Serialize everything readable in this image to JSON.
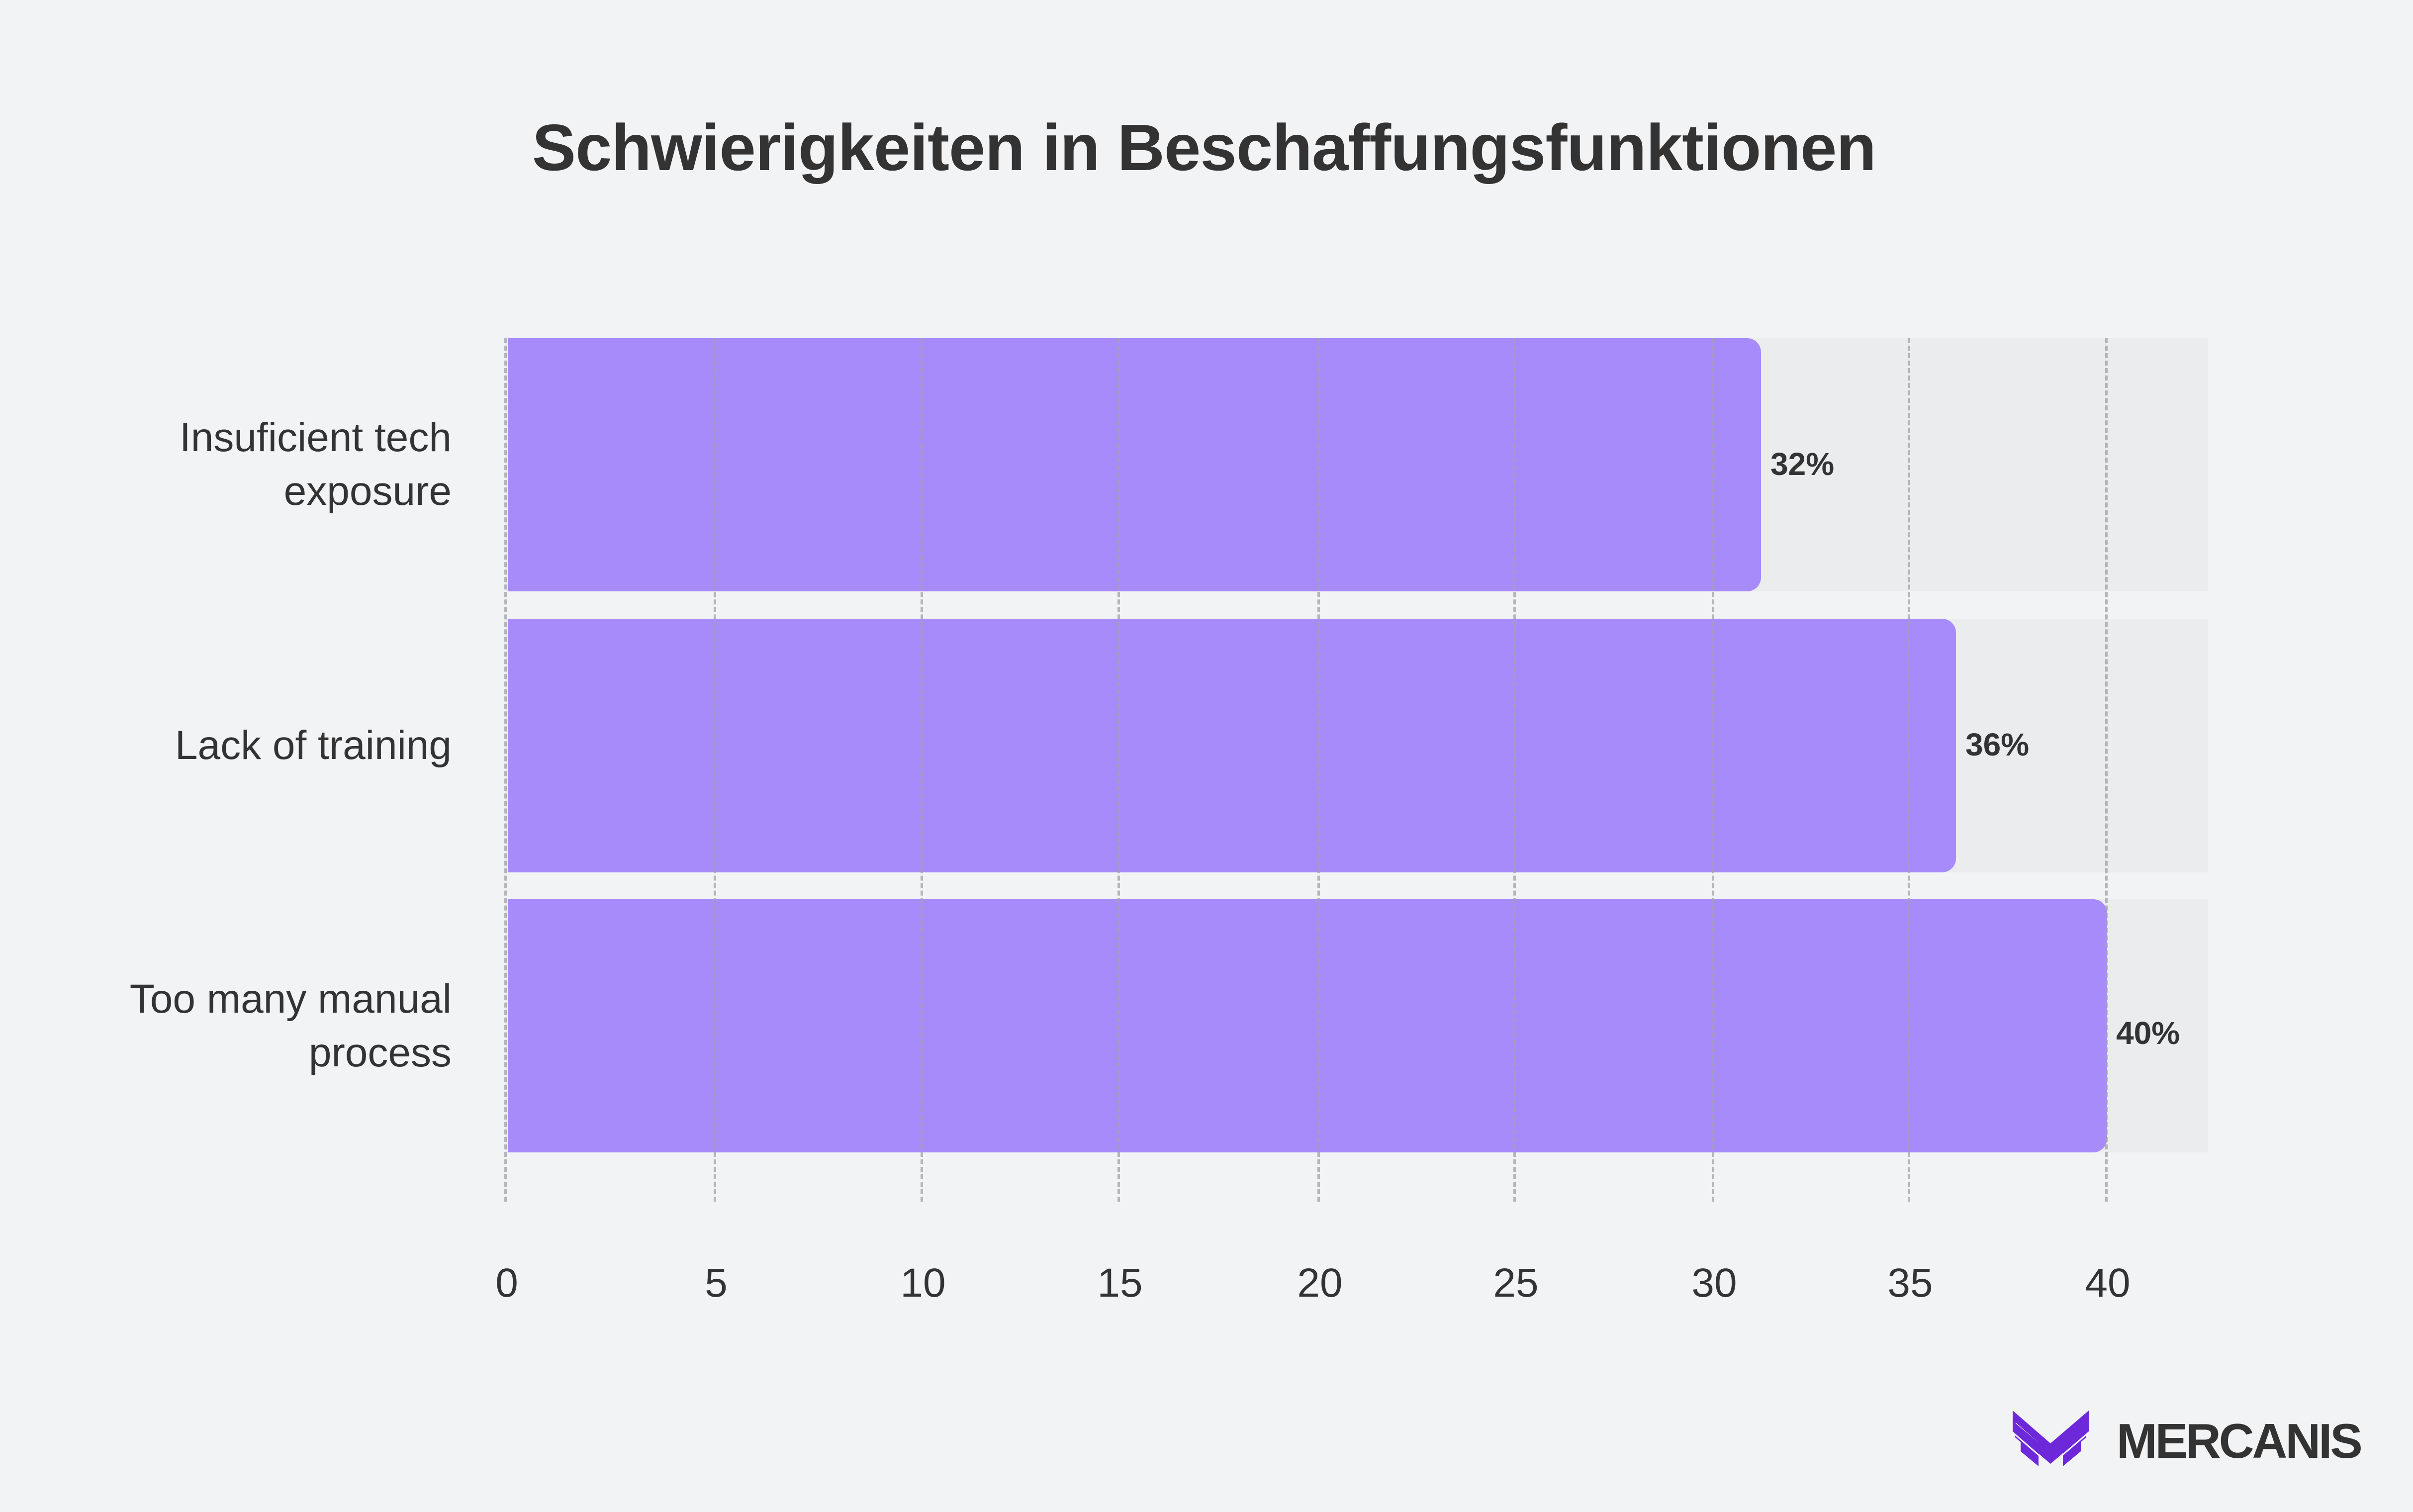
{
  "title": "Schwierigkeiten in Beschaffungsfunktionen",
  "colors": {
    "background": "#F2F3F5",
    "track": "#EBECEE",
    "bar": "#A78BFA",
    "gridline": "#A0A2A8",
    "text": "#333333",
    "logo": "#6D28D9"
  },
  "chart_data": {
    "type": "bar",
    "orientation": "horizontal",
    "title": "Schwierigkeiten in Beschaffungsfunktionen",
    "categories": [
      "Insuficient tech exposure",
      "Lack of training",
      "Too many manual process"
    ],
    "values": [
      32,
      36,
      40
    ],
    "value_labels": [
      "32%",
      "36%",
      "40%"
    ],
    "xlabel": "",
    "ylabel": "",
    "xlim": [
      0,
      42
    ],
    "xticks": [
      0,
      5,
      10,
      15,
      20,
      25,
      30,
      35,
      40
    ],
    "grid": "vertical dashed",
    "legend": "none"
  },
  "rows": [
    {
      "label_lines": [
        "Insuficient tech",
        "exposure"
      ],
      "value": 32,
      "value_label": "32%"
    },
    {
      "label_lines": [
        "Lack of training"
      ],
      "value": 36,
      "value_label": "36%"
    },
    {
      "label_lines": [
        "Too many manual",
        "process"
      ],
      "value": 40,
      "value_label": "40%"
    }
  ],
  "axis": {
    "ticks": [
      "0",
      "5",
      "10",
      "15",
      "20",
      "25",
      "30",
      "35",
      "40"
    ]
  },
  "brand": {
    "name": "MERCANIS",
    "icon": "mercanis-logo-icon"
  }
}
